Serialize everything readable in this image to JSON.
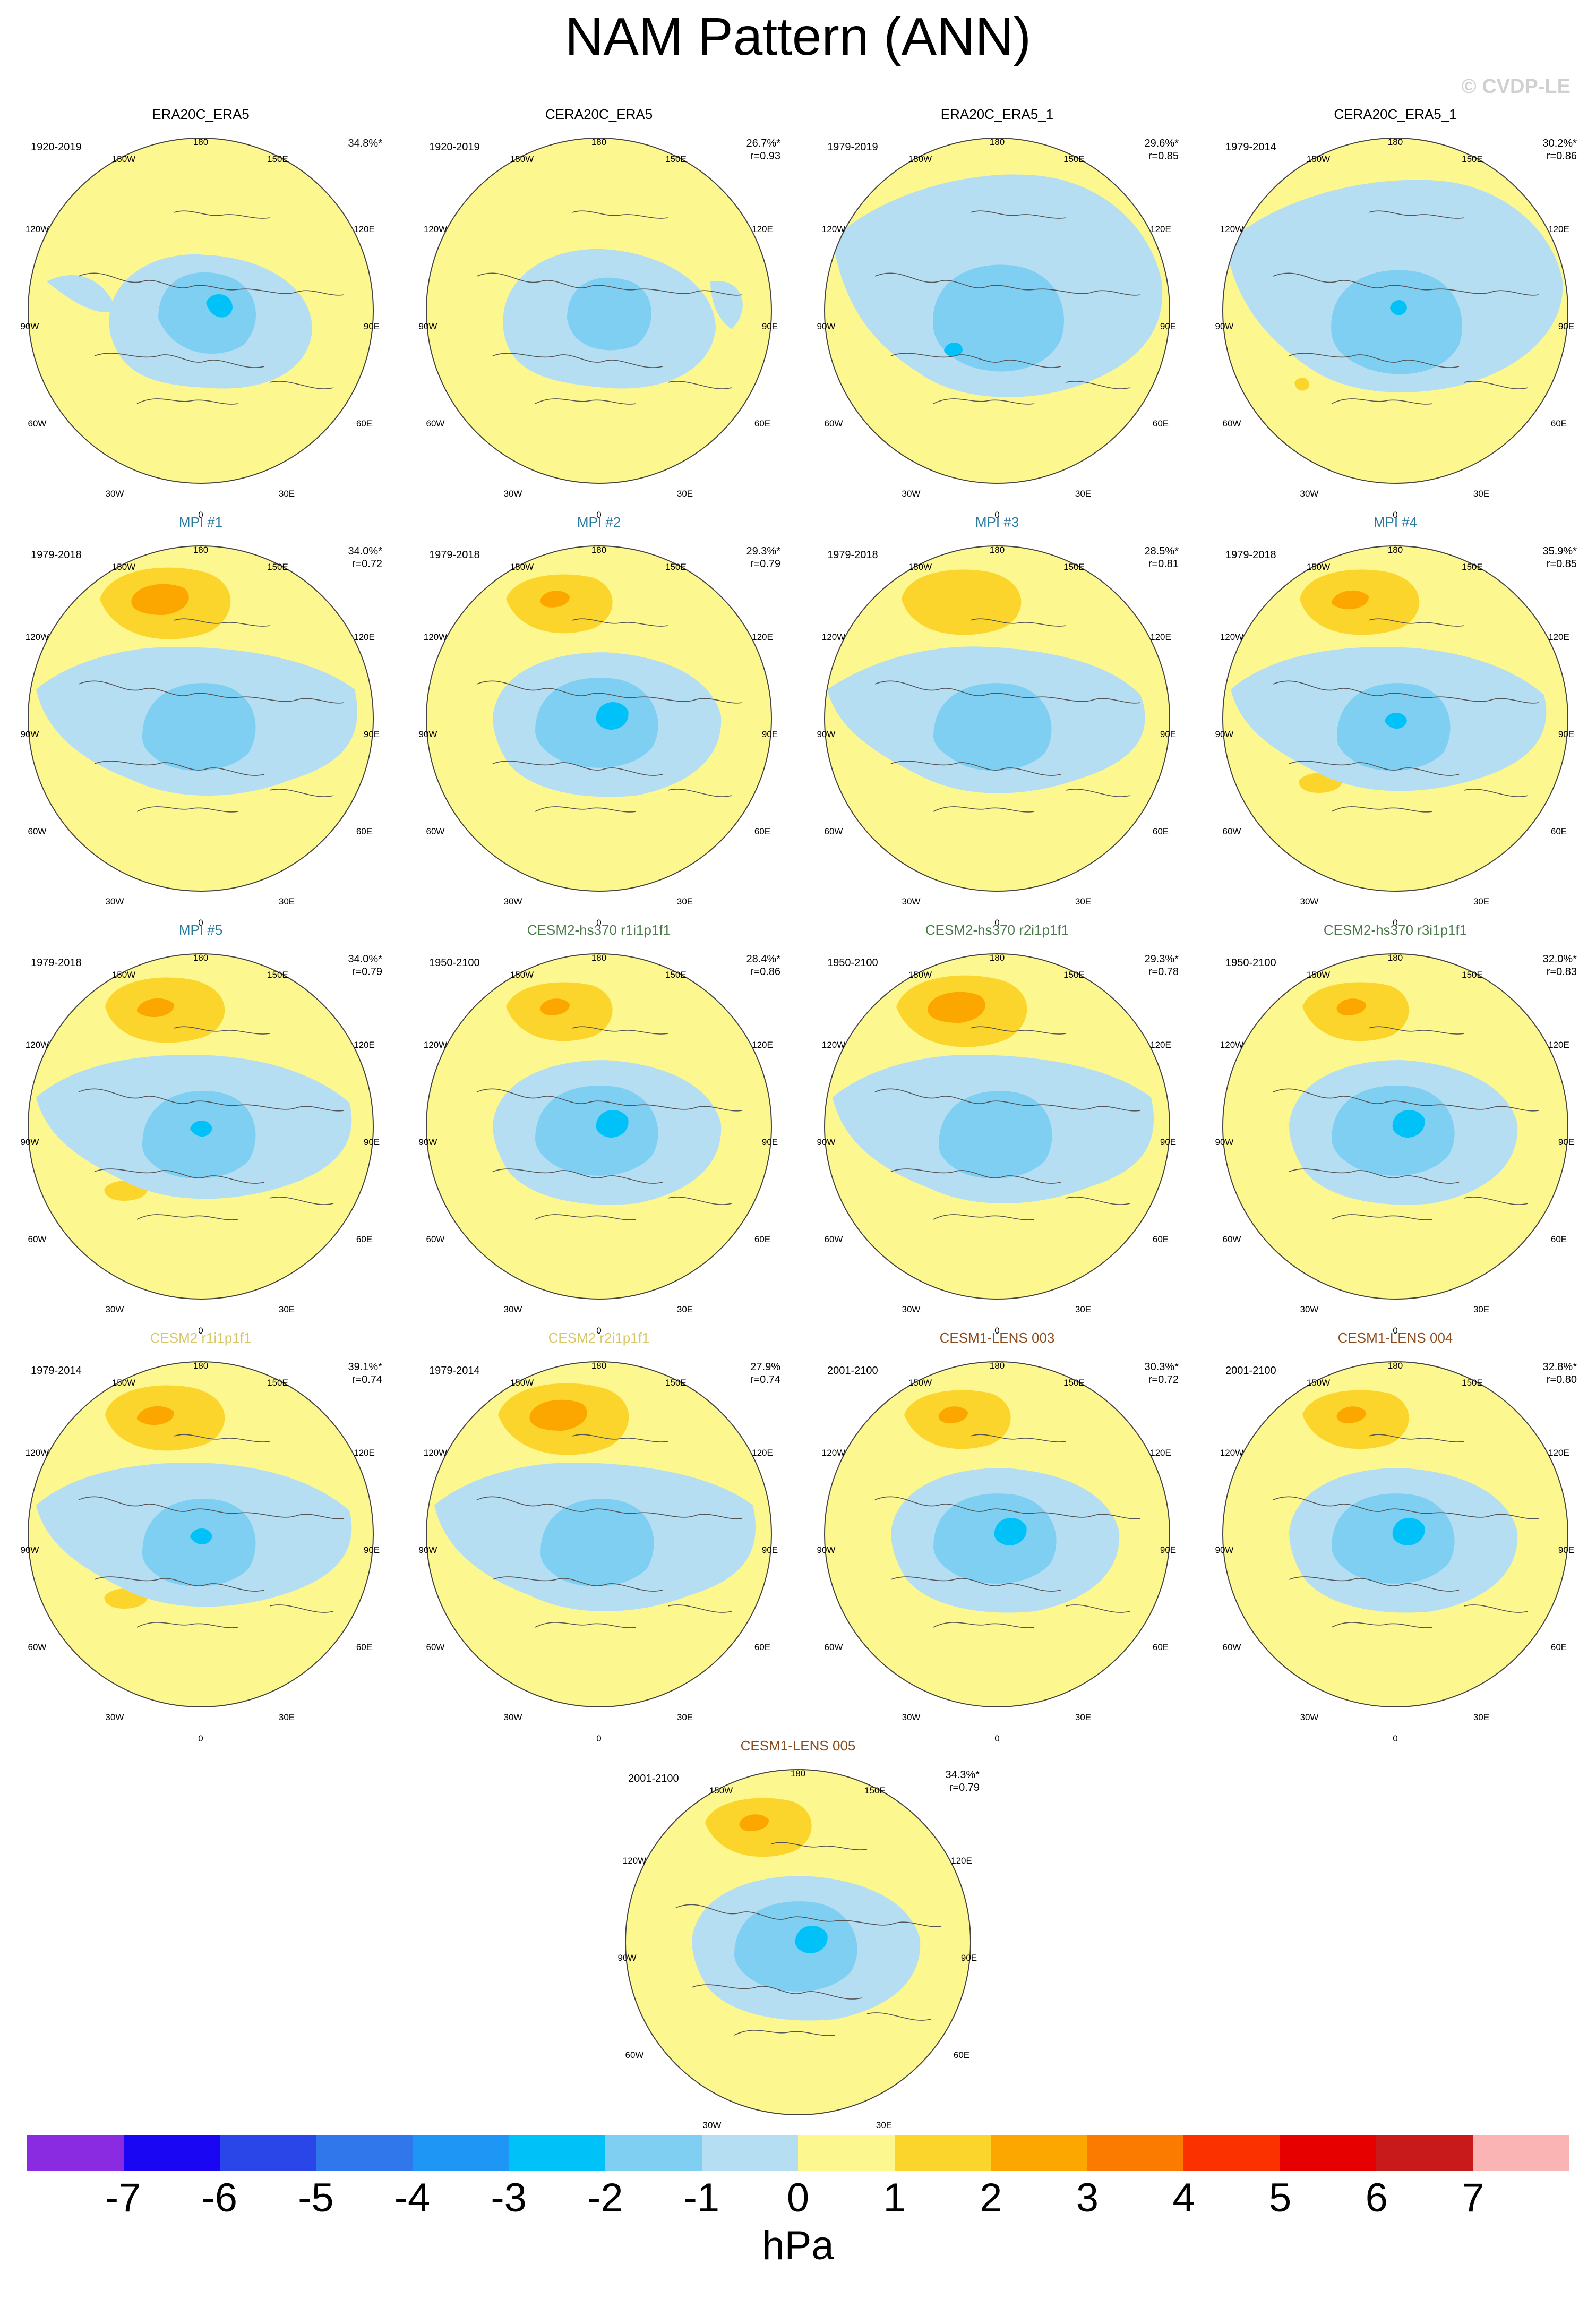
{
  "figure": {
    "title": "NAM Pattern (ANN)",
    "copyright": "© CVDP-LE"
  },
  "map_labels": {
    "top": "180",
    "bottom": "0",
    "left_upper": "120W",
    "left_mid": "90W",
    "left_lower": "60W",
    "right_upper": "120E",
    "right_mid": "90E",
    "right_lower": "60E",
    "top_left": "150W",
    "top_right": "150E",
    "bottom_left": "30W",
    "bottom_right": "30E"
  },
  "colors": {
    "land_outline": "#555555",
    "title_obs": "#000000",
    "title_mpi": "#2a7aa0",
    "title_cesm2_hs": "#4a7a4a",
    "title_cesm2": "#d6c86a",
    "title_cesm1": "#8b4a1a"
  },
  "panels": [
    {
      "title": "ERA20C_ERA5",
      "title_color": "obs",
      "period": "1920-2019",
      "pct": "34.8%*",
      "r": "",
      "pattern": "obs_a"
    },
    {
      "title": "CERA20C_ERA5",
      "title_color": "obs",
      "period": "1920-2019",
      "pct": "26.7%*",
      "r": "r=0.93",
      "pattern": "obs_b"
    },
    {
      "title": "ERA20C_ERA5_1",
      "title_color": "obs",
      "period": "1979-2019",
      "pct": "29.6%*",
      "r": "r=0.85",
      "pattern": "obs_c"
    },
    {
      "title": "CERA20C_ERA5_1",
      "title_color": "obs",
      "period": "1979-2014",
      "pct": "30.2%*",
      "r": "r=0.86",
      "pattern": "obs_d"
    },
    {
      "title": "MPI #1",
      "title_color": "mpi",
      "period": "1979-2018",
      "pct": "34.0%*",
      "r": "r=0.72",
      "pattern": "model_strong"
    },
    {
      "title": "MPI #2",
      "title_color": "mpi",
      "period": "1979-2018",
      "pct": "29.3%*",
      "r": "r=0.79",
      "pattern": "model_mid"
    },
    {
      "title": "MPI #3",
      "title_color": "mpi",
      "period": "1979-2018",
      "pct": "28.5%*",
      "r": "r=0.81",
      "pattern": "model_weak"
    },
    {
      "title": "MPI #4",
      "title_color": "mpi",
      "period": "1979-2018",
      "pct": "35.9%*",
      "r": "r=0.85",
      "pattern": "model_atl"
    },
    {
      "title": "MPI #5",
      "title_color": "mpi",
      "period": "1979-2018",
      "pct": "34.0%*",
      "r": "r=0.79",
      "pattern": "model_atl"
    },
    {
      "title": "CESM2-hs370 r1i1p1f1",
      "title_color": "cesm2_hs",
      "period": "1950-2100",
      "pct": "28.4%*",
      "r": "r=0.86",
      "pattern": "model_mid"
    },
    {
      "title": "CESM2-hs370 r2i1p1f1",
      "title_color": "cesm2_hs",
      "period": "1950-2100",
      "pct": "29.3%*",
      "r": "r=0.78",
      "pattern": "model_strong"
    },
    {
      "title": "CESM2-hs370 r3i1p1f1",
      "title_color": "cesm2_hs",
      "period": "1950-2100",
      "pct": "32.0%*",
      "r": "r=0.83",
      "pattern": "model_mid"
    },
    {
      "title": "CESM2 r1i1p1f1",
      "title_color": "cesm2",
      "period": "1979-2014",
      "pct": "39.1%*",
      "r": "r=0.74",
      "pattern": "model_atl"
    },
    {
      "title": "CESM2 r2i1p1f1",
      "title_color": "cesm2",
      "period": "1979-2014",
      "pct": "27.9%",
      "r": "r=0.74",
      "pattern": "model_strong"
    },
    {
      "title": "CESM1-LENS 003",
      "title_color": "cesm1",
      "period": "2001-2100",
      "pct": "30.3%*",
      "r": "r=0.72",
      "pattern": "model_mid"
    },
    {
      "title": "CESM1-LENS 004",
      "title_color": "cesm1",
      "period": "2001-2100",
      "pct": "32.8%*",
      "r": "r=0.80",
      "pattern": "model_mid"
    },
    {
      "title": "CESM1-LENS 005",
      "title_color": "cesm1",
      "period": "2001-2100",
      "pct": "34.3%*",
      "r": "r=0.79",
      "pattern": "model_mid"
    }
  ],
  "colorbar": {
    "unit": "hPa",
    "ticks": [
      "-7",
      "-6",
      "-5",
      "-4",
      "-3",
      "-2",
      "-1",
      "0",
      "1",
      "2",
      "3",
      "4",
      "5",
      "6",
      "7"
    ],
    "colors": [
      "#8a2be2",
      "#1a06f2",
      "#2a46e8",
      "#2f77ea",
      "#1e96f5",
      "#00c2f8",
      "#7ecff2",
      "#b6def3",
      "#fdf790",
      "#fcd52c",
      "#fba700",
      "#fb7a00",
      "#fc3100",
      "#e60000",
      "#c81a1a",
      "#fbb4b4"
    ]
  }
}
